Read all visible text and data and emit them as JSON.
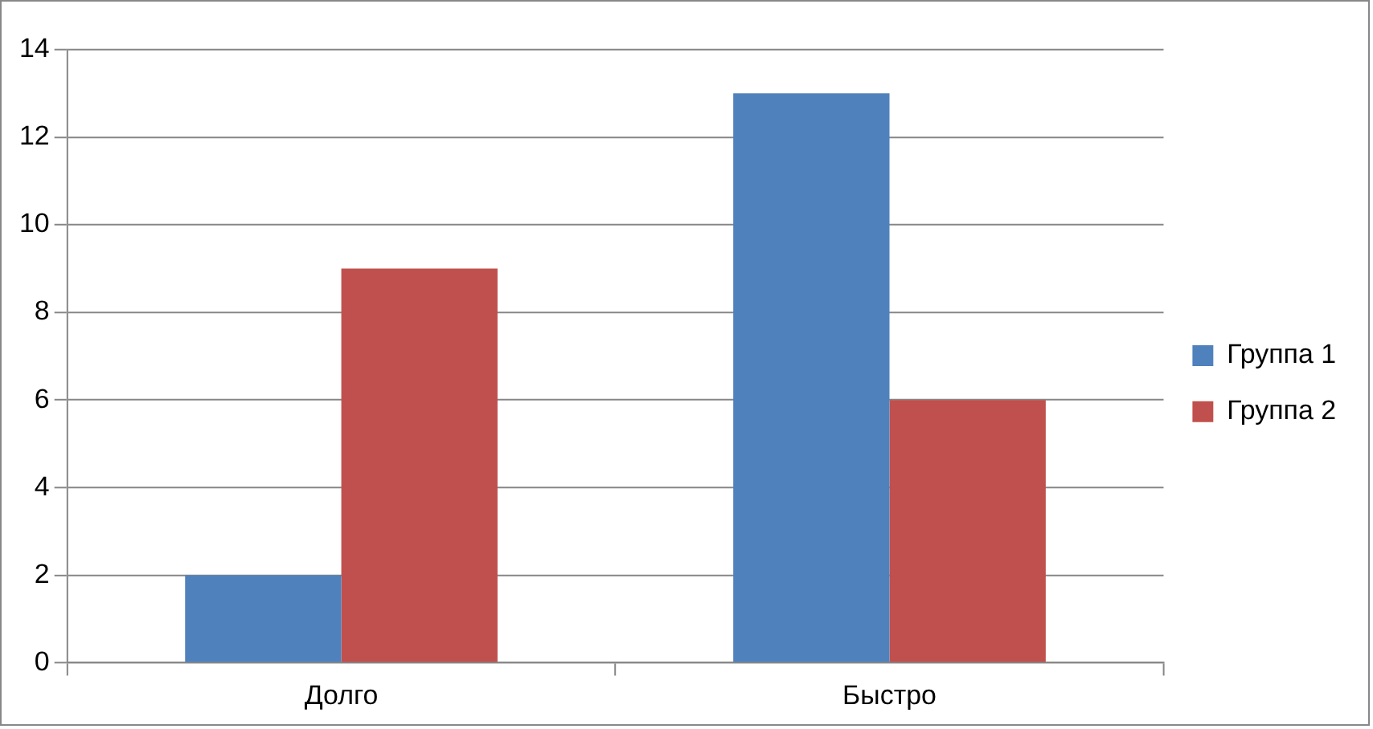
{
  "chart_data": {
    "type": "bar",
    "categories": [
      "Долго",
      "Быстро"
    ],
    "series": [
      {
        "name": "Группа 1",
        "color": "#4f81bd",
        "values": [
          2,
          13
        ]
      },
      {
        "name": "Группа 2",
        "color": "#c0504d",
        "values": [
          9,
          6
        ]
      }
    ],
    "ylim": [
      0,
      14
    ],
    "yticks": [
      0,
      2,
      4,
      6,
      8,
      10,
      12,
      14
    ],
    "grid": "y",
    "legend": "right"
  }
}
